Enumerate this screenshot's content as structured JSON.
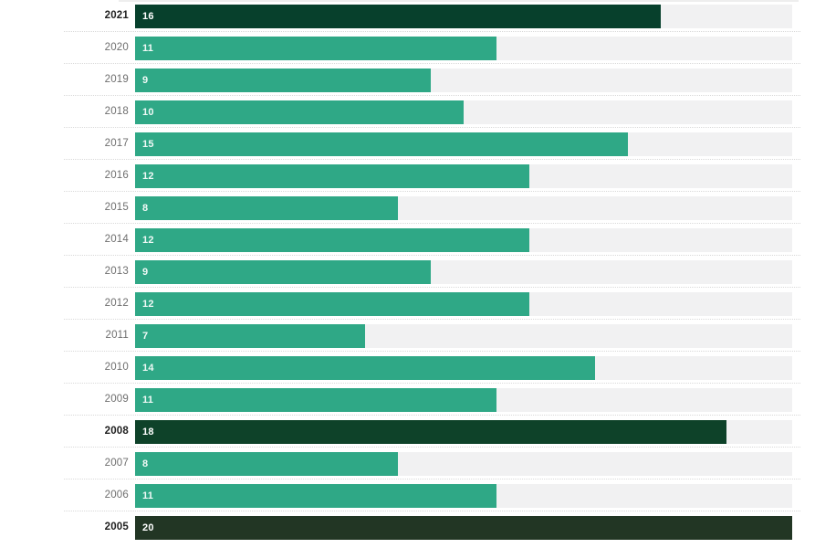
{
  "chart_data": {
    "type": "bar",
    "orientation": "horizontal",
    "title": "",
    "xlabel": "",
    "ylabel": "",
    "xlim": [
      0,
      20
    ],
    "legend": "none",
    "grid": "dotted-row-separators",
    "categories": [
      "2021",
      "2020",
      "2019",
      "2018",
      "2017",
      "2016",
      "2015",
      "2014",
      "2013",
      "2012",
      "2011",
      "2010",
      "2009",
      "2008",
      "2007",
      "2006",
      "2005"
    ],
    "values": [
      16,
      11,
      9,
      10,
      15,
      12,
      8,
      12,
      9,
      12,
      7,
      14,
      11,
      18,
      8,
      11,
      20
    ],
    "highlighted_categories": [
      "2021",
      "2008",
      "2005"
    ],
    "colors": {
      "bar_default": "#2fa886",
      "bar_2021": "#07402c",
      "bar_2008": "#0e4229",
      "bar_2005": "#223624",
      "track": "#f1f1f2",
      "value_label": "#ffffff",
      "year_label": "#6e6e6e",
      "year_label_highlight": "#1f1f1f",
      "separator": "#d9d9d9"
    }
  }
}
